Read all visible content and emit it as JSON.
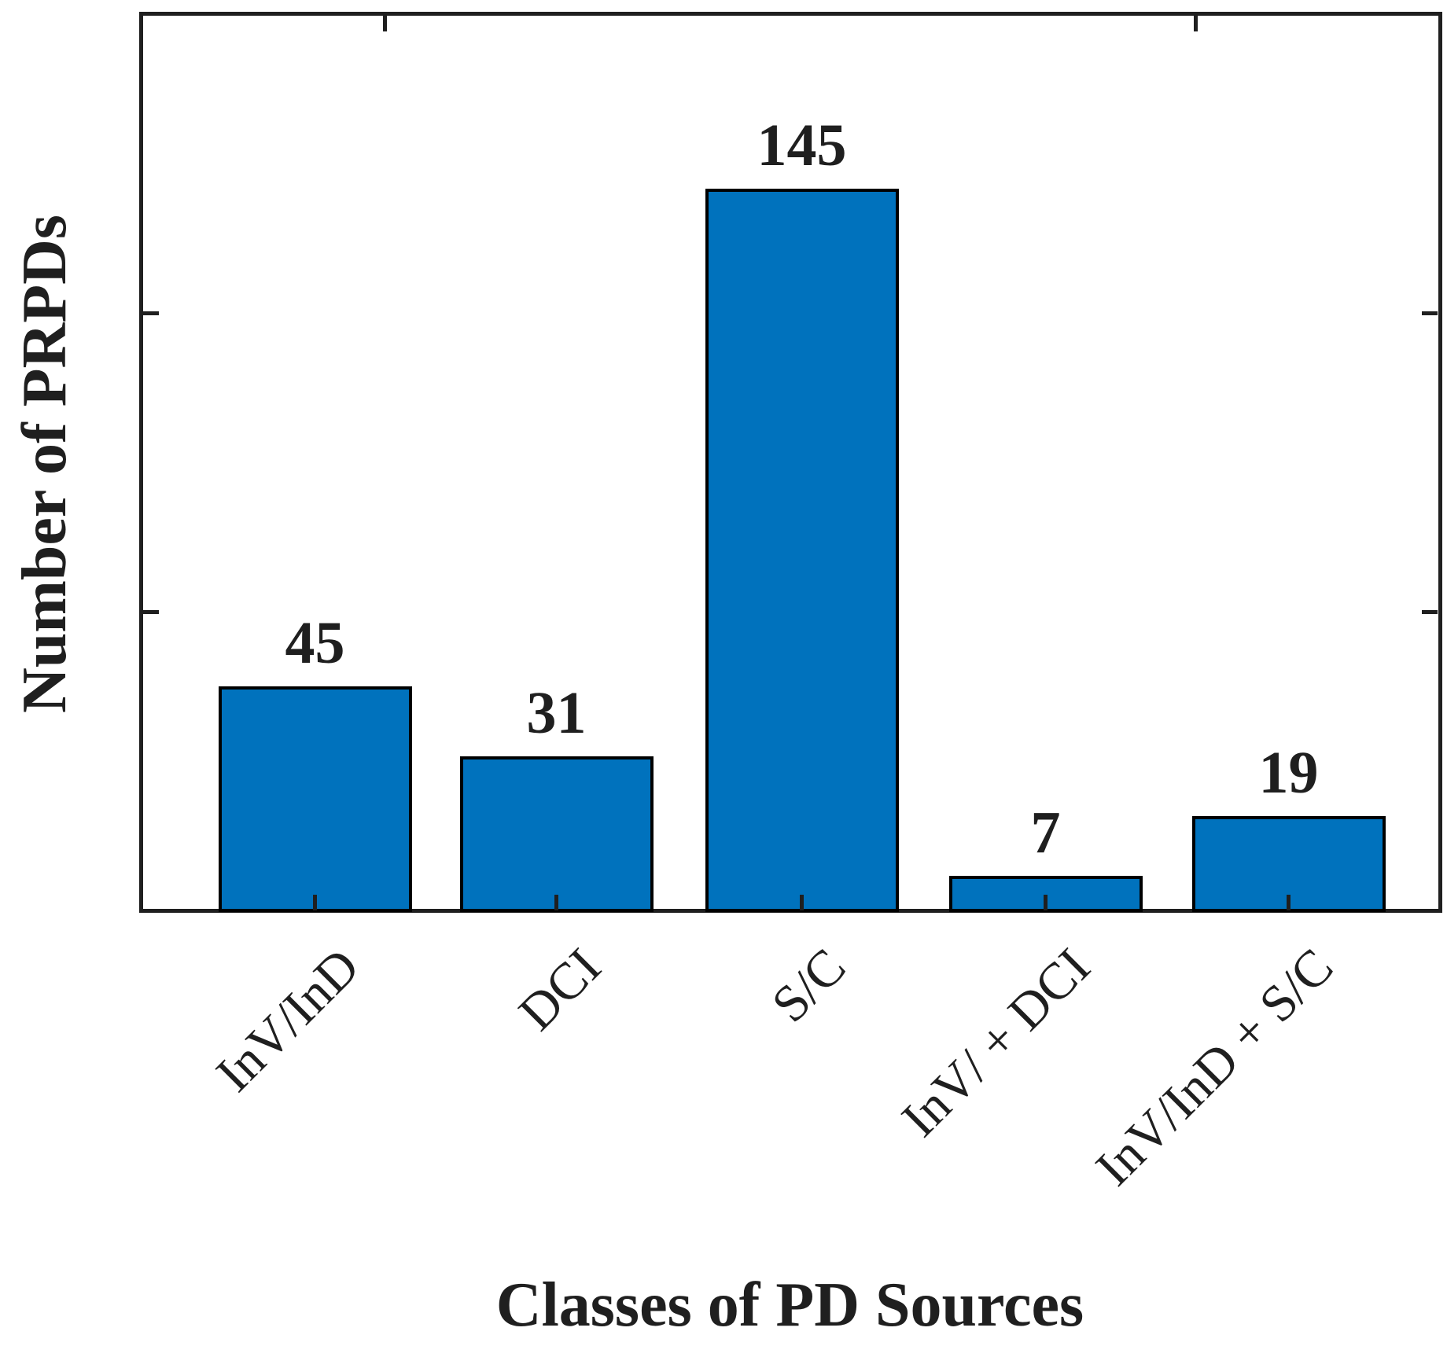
{
  "chart_data": {
    "type": "bar",
    "categories": [
      "InV/InD",
      "DCI",
      "S/C",
      "InV/ + DCI",
      "InV/InD + S/C"
    ],
    "values": [
      45,
      31,
      145,
      7,
      19
    ],
    "value_labels": [
      "45",
      "31",
      "145",
      "7",
      "19"
    ],
    "xlabel": "Classes of PD Sources",
    "ylabel": "Number of PRPDs",
    "ylim": [
      0,
      180
    ],
    "yticks": [
      60,
      120
    ],
    "ytick_labels_visible": false,
    "xtick_label_rotation_deg": 45,
    "grid": false,
    "legend": false,
    "colors": {
      "bar_fill": "#0072BD",
      "bar_edge": "#000000",
      "axis": "#1f1f1f",
      "text": "#1f1f1f",
      "background": "#ffffff"
    }
  }
}
